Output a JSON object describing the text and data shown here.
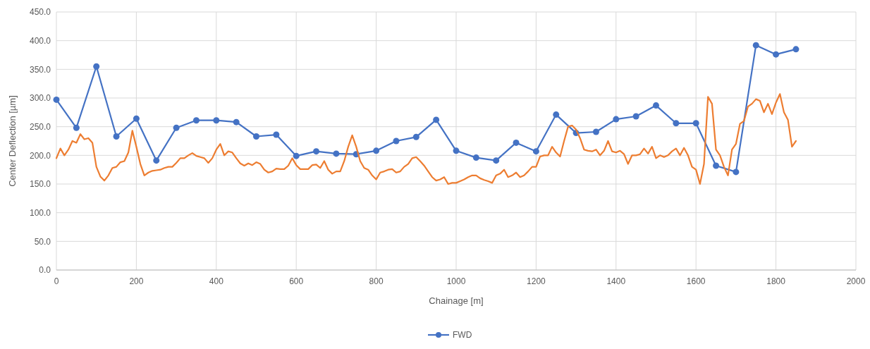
{
  "chart_data": {
    "type": "line",
    "xlabel": "Chainage [m]",
    "ylabel": "Center Deflection [µm]",
    "xlim": [
      0,
      2000
    ],
    "xticks": [
      0,
      200,
      400,
      600,
      800,
      1000,
      1200,
      1400,
      1600,
      1800,
      2000
    ],
    "ylim": [
      0,
      450
    ],
    "yticks": [
      {
        "value": 0,
        "label": "0.0"
      },
      {
        "value": 50,
        "label": "50.0"
      },
      {
        "value": 100,
        "label": "100.0"
      },
      {
        "value": 150,
        "label": "150.0"
      },
      {
        "value": 200,
        "label": "200.0"
      },
      {
        "value": 250,
        "label": "250.0"
      },
      {
        "value": 300,
        "label": "300.0"
      },
      {
        "value": 350,
        "label": "350.0"
      },
      {
        "value": 400,
        "label": "400.0"
      },
      {
        "value": 450,
        "label": "450.0"
      }
    ],
    "grid": true,
    "legend": "bottom",
    "line_style": "solid",
    "series": [
      {
        "name": "FWD",
        "color": "#4472c4",
        "marker": "circle",
        "x": [
          0,
          50,
          100,
          150,
          200,
          250,
          300,
          350,
          400,
          450,
          500,
          550,
          600,
          650,
          700,
          750,
          800,
          850,
          900,
          950,
          1000,
          1050,
          1100,
          1150,
          1200,
          1250,
          1300,
          1350,
          1400,
          1450,
          1500,
          1550,
          1600,
          1650,
          1700,
          1750,
          1800,
          1850
        ],
        "values": [
          297,
          248,
          355,
          233,
          264,
          191,
          248,
          261,
          261,
          258,
          233,
          236,
          199,
          207,
          203,
          202,
          208,
          225,
          232,
          262,
          208,
          196,
          191,
          222,
          207,
          271,
          239,
          241,
          263,
          268,
          287,
          256,
          256,
          182,
          171,
          392,
          376,
          385
        ]
      },
      {
        "color": "#ed7d31",
        "marker": "none",
        "x": [
          0,
          10,
          20,
          30,
          40,
          50,
          60,
          70,
          80,
          90,
          100,
          110,
          120,
          130,
          140,
          150,
          160,
          170,
          180,
          190,
          200,
          210,
          220,
          230,
          240,
          250,
          260,
          270,
          280,
          290,
          300,
          310,
          320,
          330,
          340,
          350,
          360,
          370,
          380,
          390,
          400,
          410,
          420,
          430,
          440,
          450,
          460,
          470,
          480,
          490,
          500,
          510,
          520,
          530,
          540,
          550,
          560,
          570,
          580,
          590,
          600,
          610,
          620,
          630,
          640,
          650,
          660,
          670,
          680,
          690,
          700,
          710,
          720,
          730,
          740,
          750,
          760,
          770,
          780,
          790,
          800,
          810,
          820,
          830,
          840,
          850,
          860,
          870,
          880,
          890,
          900,
          910,
          920,
          930,
          940,
          950,
          960,
          970,
          980,
          990,
          1000,
          1010,
          1020,
          1030,
          1040,
          1050,
          1060,
          1070,
          1080,
          1090,
          1100,
          1110,
          1120,
          1130,
          1140,
          1150,
          1160,
          1170,
          1180,
          1190,
          1200,
          1210,
          1220,
          1230,
          1240,
          1250,
          1260,
          1270,
          1280,
          1290,
          1300,
          1310,
          1320,
          1330,
          1340,
          1350,
          1360,
          1370,
          1380,
          1390,
          1400,
          1410,
          1420,
          1430,
          1440,
          1450,
          1460,
          1470,
          1480,
          1490,
          1500,
          1510,
          1520,
          1530,
          1540,
          1550,
          1560,
          1570,
          1580,
          1590,
          1600,
          1610,
          1620,
          1630,
          1640,
          1650,
          1660,
          1670,
          1680,
          1690,
          1700,
          1710,
          1720,
          1730,
          1740,
          1750,
          1760,
          1770,
          1780,
          1790,
          1800,
          1810,
          1820,
          1830,
          1840,
          1850
        ],
        "values": [
          195,
          212,
          200,
          210,
          225,
          222,
          237,
          228,
          230,
          222,
          180,
          163,
          156,
          165,
          178,
          180,
          188,
          190,
          205,
          243,
          215,
          185,
          165,
          170,
          173,
          174,
          175,
          178,
          180,
          180,
          187,
          195,
          195,
          200,
          204,
          199,
          197,
          195,
          187,
          195,
          210,
          220,
          200,
          207,
          205,
          195,
          186,
          182,
          186,
          183,
          188,
          185,
          175,
          170,
          172,
          177,
          176,
          176,
          182,
          195,
          183,
          176,
          176,
          176,
          183,
          184,
          178,
          190,
          175,
          168,
          172,
          172,
          190,
          215,
          235,
          215,
          190,
          178,
          175,
          165,
          158,
          170,
          172,
          175,
          176,
          170,
          172,
          180,
          185,
          195,
          197,
          190,
          182,
          172,
          162,
          156,
          158,
          162,
          150,
          152,
          152,
          155,
          158,
          162,
          165,
          165,
          160,
          157,
          155,
          152,
          165,
          168,
          175,
          162,
          165,
          170,
          162,
          165,
          172,
          180,
          180,
          198,
          200,
          200,
          215,
          205,
          198,
          225,
          250,
          252,
          245,
          230,
          210,
          208,
          207,
          210,
          200,
          208,
          225,
          207,
          205,
          208,
          202,
          185,
          200,
          200,
          202,
          212,
          203,
          215,
          195,
          200,
          197,
          200,
          207,
          212,
          200,
          213,
          200,
          180,
          175,
          150,
          185,
          302,
          290,
          210,
          200,
          180,
          165,
          210,
          220,
          255,
          260,
          285,
          290,
          298,
          295,
          275,
          290,
          272,
          292,
          307,
          275,
          262,
          215,
          225
        ]
      }
    ]
  }
}
